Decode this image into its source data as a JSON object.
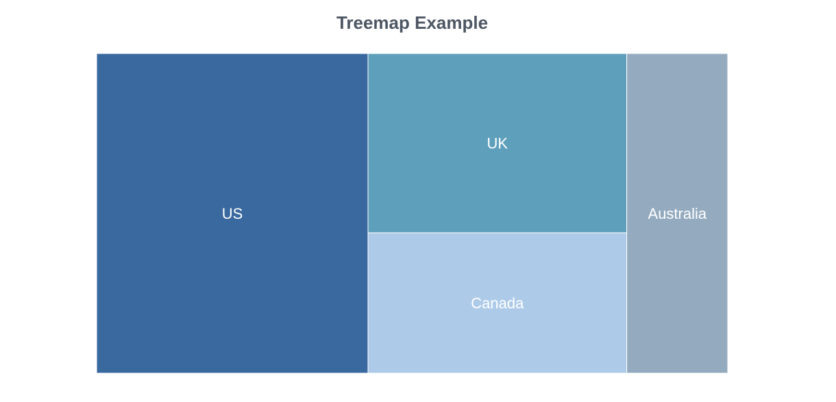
{
  "chart_data": {
    "type": "treemap",
    "title": "Treemap Example",
    "items": [
      {
        "label": "US",
        "value": 43,
        "color": "#3a699f"
      },
      {
        "label": "UK",
        "value": 23,
        "color": "#5e9fbb"
      },
      {
        "label": "Canada",
        "value": 18,
        "color": "#adcbe9"
      },
      {
        "label": "Australia",
        "value": 16,
        "color": "#94abbf"
      }
    ]
  }
}
